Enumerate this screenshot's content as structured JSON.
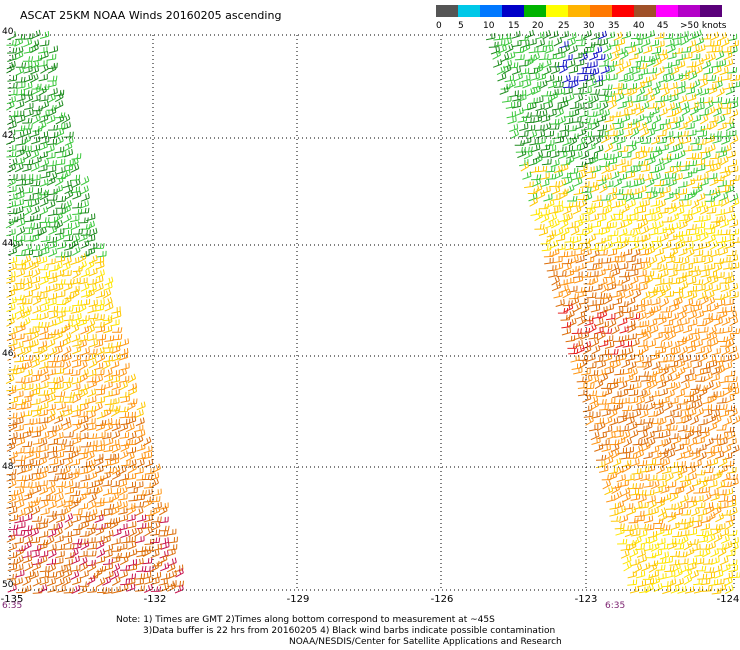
{
  "title": "ASCAT 25KM NOAA Winds 20160205 ascending",
  "legend": {
    "colors": [
      "#555555",
      "#00c8e8",
      "#0078ff",
      "#0000c8",
      "#00b400",
      "#ffff00",
      "#ffb400",
      "#ff7800",
      "#ff0000",
      "#a05028",
      "#ff00ff",
      "#b400c8",
      "#5a007a"
    ],
    "labels": [
      "0",
      "5",
      "10",
      "15",
      "20",
      "25",
      "30",
      "35",
      "40",
      "45",
      ">50 knots"
    ]
  },
  "y_axis": {
    "labels": [
      "40",
      "42",
      "44",
      "46",
      "48",
      "50"
    ]
  },
  "x_axis": {
    "labels": [
      "-135",
      "-132",
      "-129",
      "-126",
      "-123",
      "-124"
    ]
  },
  "times": {
    "left": "6:35",
    "right": "6:35"
  },
  "notes": {
    "line1": "Note: 1) Times are GMT 2)Times along bottom correspond to measurement at ~45S",
    "line2": "3)Data buffer is 22 hrs from 20160205 4) Black wind barbs indicate possible contamination",
    "line3": "NOAA/NESDIS/Center for Satellite Applications and Research"
  },
  "barb_colors": {
    "dark_green": "#1e8c1e",
    "green": "#3cc83c",
    "blue": "#1414c8",
    "yellow": "#ffe600",
    "gold": "#ffc800",
    "orange": "#ff9614",
    "dark_orange": "#dc6e0a",
    "red": "#e61e1e",
    "crimson": "#c81450"
  }
}
